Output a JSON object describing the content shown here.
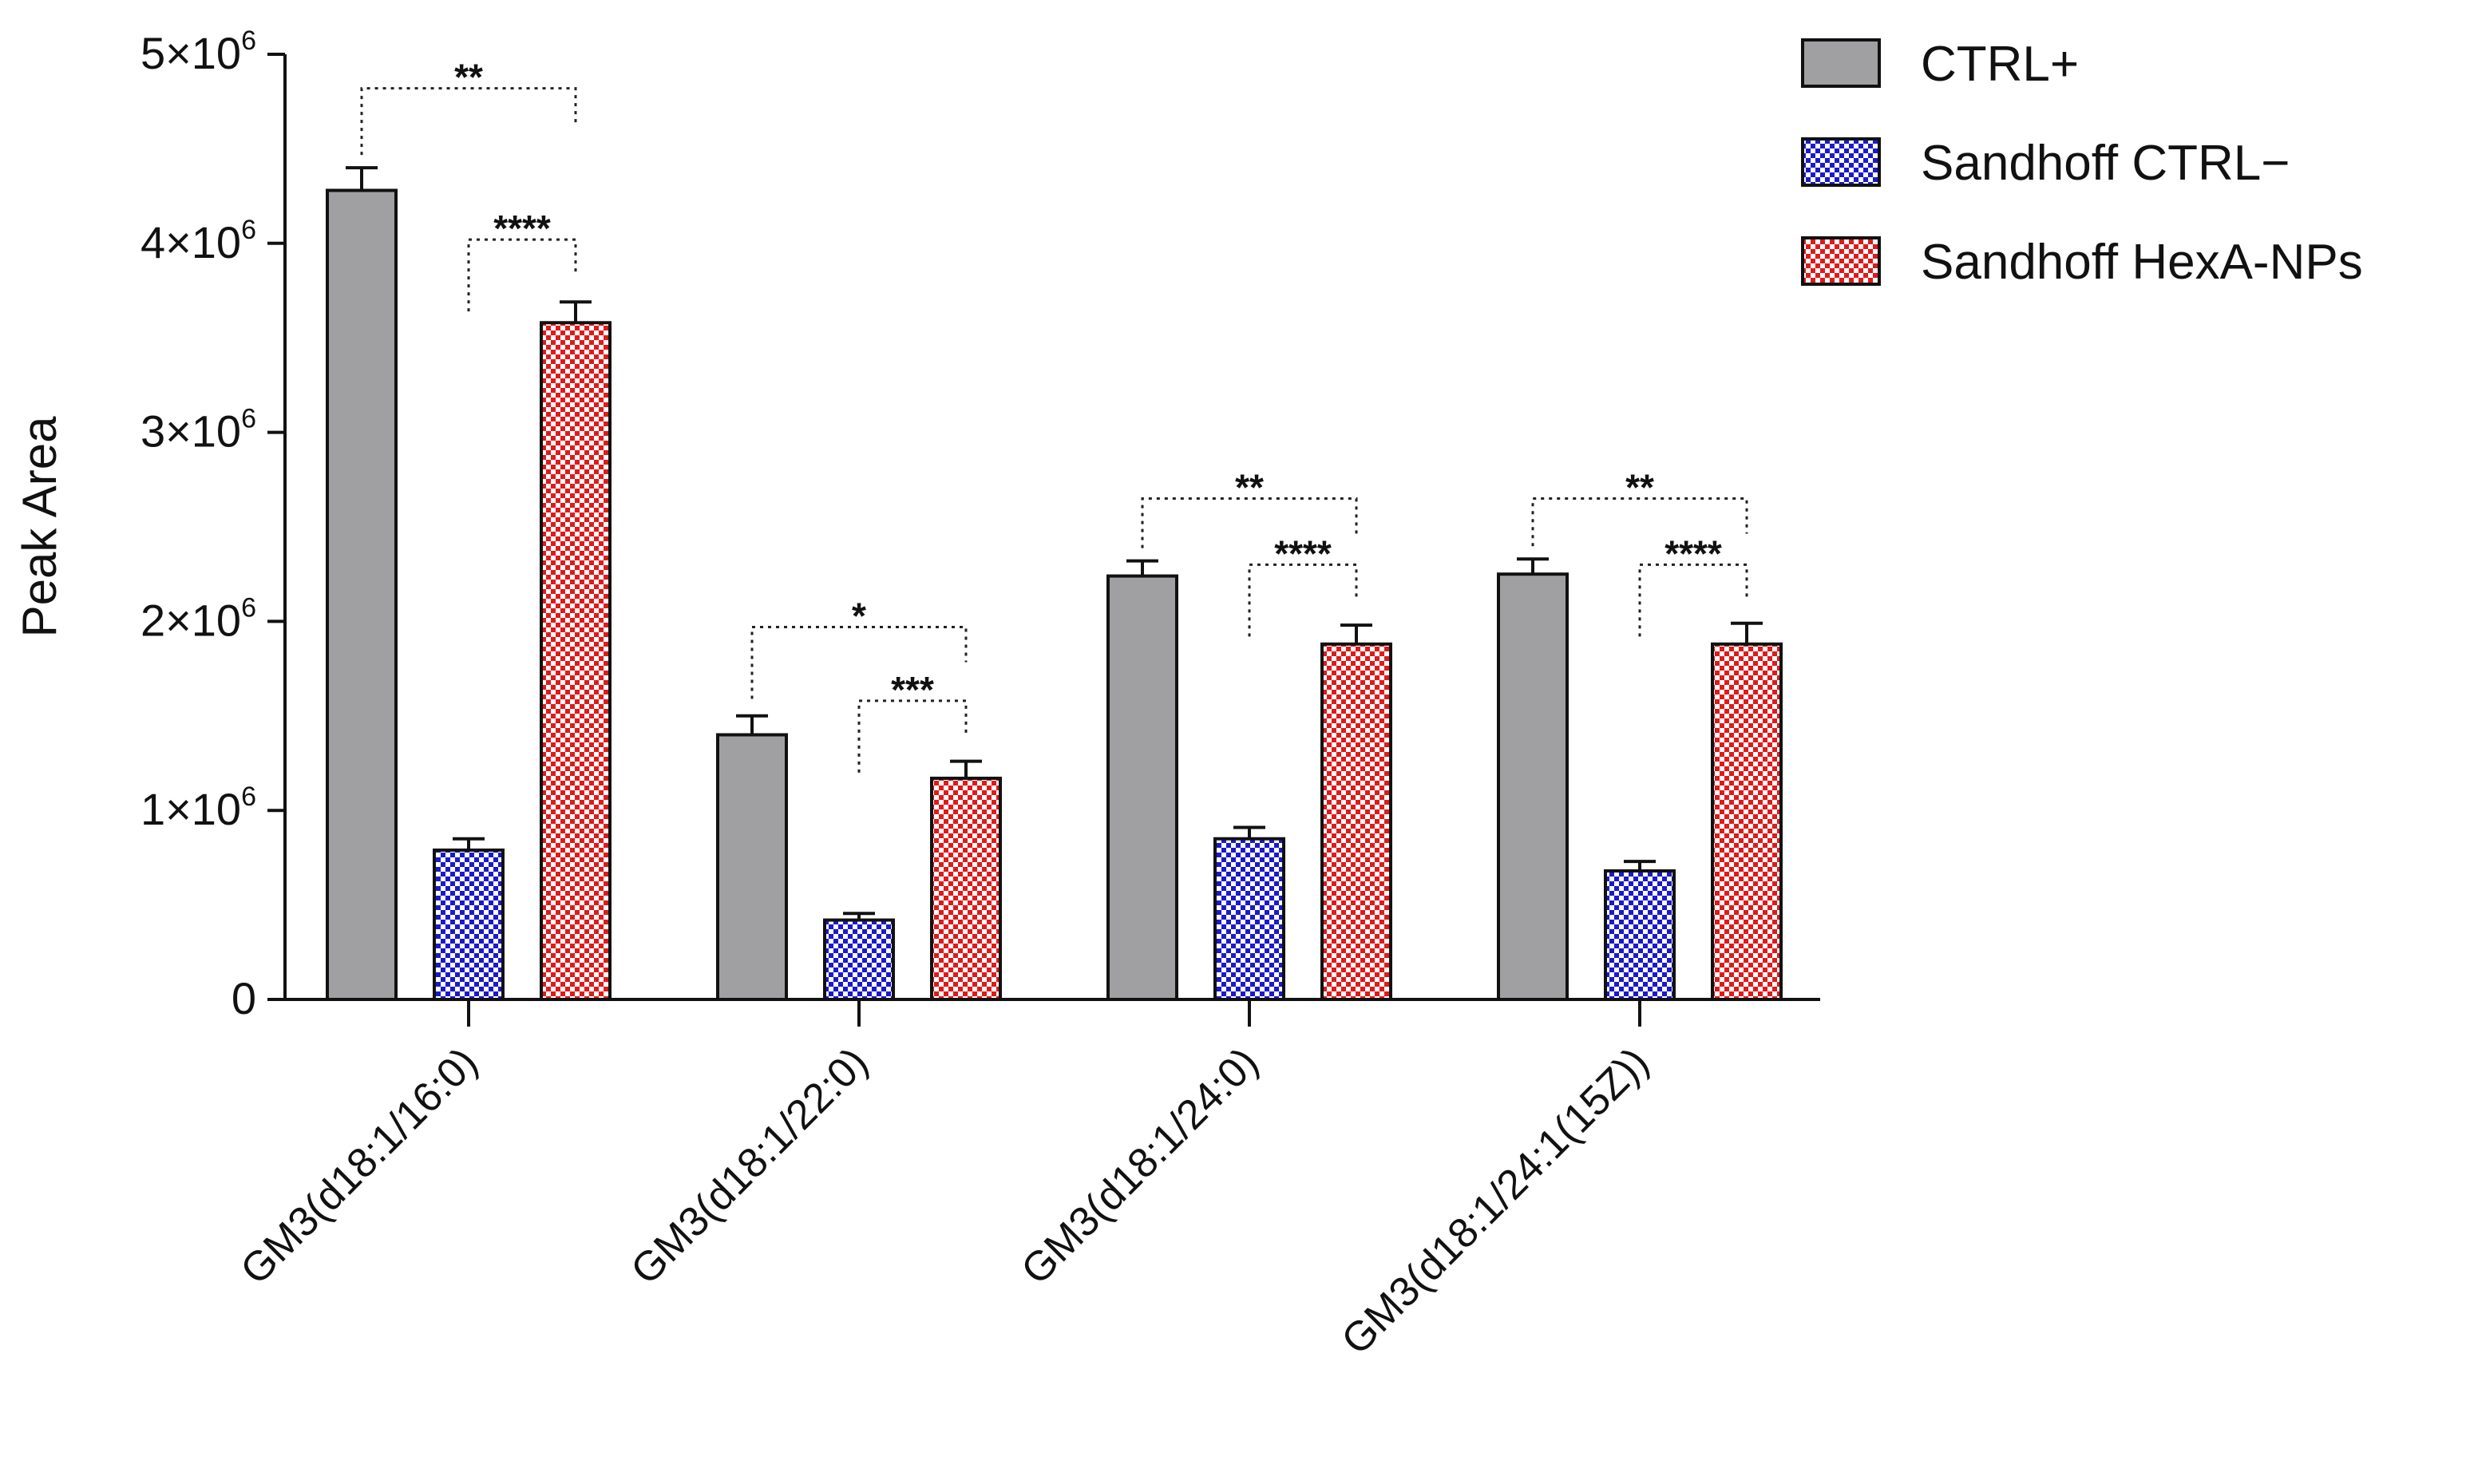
{
  "chart_data": {
    "type": "bar",
    "title": "",
    "xlabel": "",
    "ylabel": "Peak Area",
    "ylim": [
      0,
      5000000
    ],
    "y_ticks": [
      {
        "value": 0,
        "label": "0",
        "exp": ""
      },
      {
        "value": 1000000,
        "label": "1×10",
        "exp": "6"
      },
      {
        "value": 2000000,
        "label": "2×10",
        "exp": "6"
      },
      {
        "value": 3000000,
        "label": "3×10",
        "exp": "6"
      },
      {
        "value": 4000000,
        "label": "4×10",
        "exp": "6"
      },
      {
        "value": 5000000,
        "label": "5×10",
        "exp": "6"
      }
    ],
    "categories": [
      "GM3(d18:1/16:0)",
      "GM3(d18:1/22:0)",
      "GM3(d18:1/24:0)",
      "GM3(d18:1/24:1(15Z))"
    ],
    "series": [
      {
        "name": "CTRL+",
        "pattern": "solid",
        "color": "#a0a0a2",
        "values": [
          4280000,
          1400000,
          2240000,
          2250000
        ],
        "errors": [
          120000,
          100000,
          80000,
          80000
        ]
      },
      {
        "name": "Sandhoff CTRL−",
        "pattern": "checker",
        "color": "#1a1acc",
        "values": [
          790000,
          420000,
          850000,
          680000
        ],
        "errors": [
          60000,
          35000,
          60000,
          50000
        ]
      },
      {
        "name": "Sandhoff HexA-NPs",
        "pattern": "checker",
        "color": "#e01a1a",
        "values": [
          3580000,
          1170000,
          1880000,
          1880000
        ],
        "errors": [
          110000,
          90000,
          100000,
          110000
        ]
      }
    ],
    "significance": [
      {
        "category": 0,
        "from_series": 0,
        "to_series": 2,
        "label": "**",
        "level": 4820000
      },
      {
        "category": 0,
        "from_series": 1,
        "to_series": 2,
        "label": "****",
        "level": 4020000
      },
      {
        "category": 1,
        "from_series": 0,
        "to_series": 2,
        "label": "*",
        "level": 1970000
      },
      {
        "category": 1,
        "from_series": 1,
        "to_series": 2,
        "label": "***",
        "level": 1580000
      },
      {
        "category": 2,
        "from_series": 0,
        "to_series": 2,
        "label": "**",
        "level": 2650000
      },
      {
        "category": 2,
        "from_series": 1,
        "to_series": 2,
        "label": "****",
        "level": 2300000
      },
      {
        "category": 3,
        "from_series": 0,
        "to_series": 2,
        "label": "**",
        "level": 2650000
      },
      {
        "category": 3,
        "from_series": 1,
        "to_series": 2,
        "label": "****",
        "level": 2300000
      }
    ],
    "legend": {
      "position": "top-right"
    },
    "grid": false
  }
}
